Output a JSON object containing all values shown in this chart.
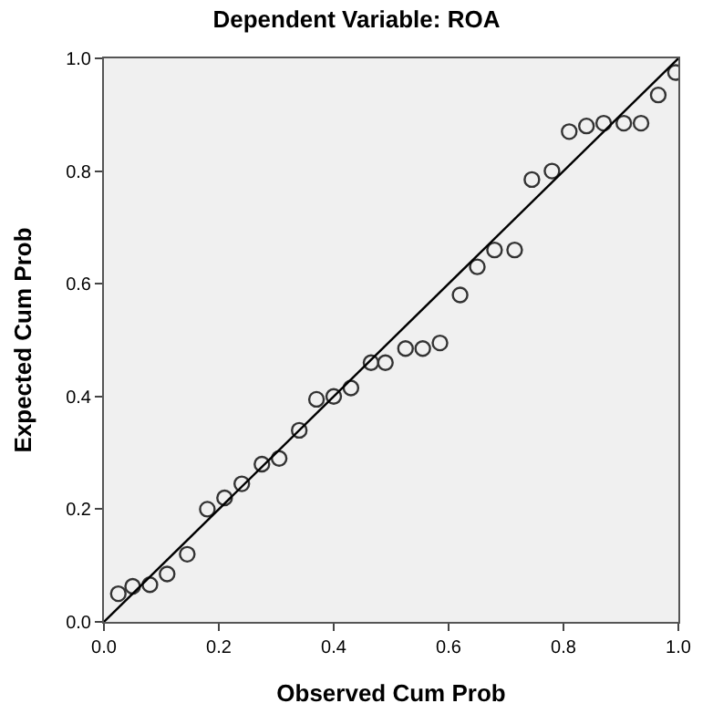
{
  "chart_data": {
    "type": "scatter",
    "title": "Dependent Variable: ROA",
    "xlabel": "Observed Cum Prob",
    "ylabel": "Expected Cum Prob",
    "xlim": [
      0,
      1
    ],
    "ylim": [
      0,
      1
    ],
    "xticks": [
      {
        "value": 0,
        "label": "0.0"
      },
      {
        "value": 0.2,
        "label": "0.2"
      },
      {
        "value": 0.4,
        "label": "0.4"
      },
      {
        "value": 0.6,
        "label": "0.6"
      },
      {
        "value": 0.8,
        "label": "0.8"
      },
      {
        "value": 1,
        "label": "1.0"
      }
    ],
    "yticks": [
      {
        "value": 0,
        "label": "0.0"
      },
      {
        "value": 0.2,
        "label": "0.2"
      },
      {
        "value": 0.4,
        "label": "0.4"
      },
      {
        "value": 0.6,
        "label": "0.6"
      },
      {
        "value": 0.8,
        "label": "0.8"
      },
      {
        "value": 1,
        "label": "1.0"
      }
    ],
    "grid": false,
    "series": [
      {
        "marker": "circle",
        "color": "#333333",
        "x": [
          0.025,
          0.05,
          0.08,
          0.11,
          0.145,
          0.18,
          0.21,
          0.24,
          0.275,
          0.305,
          0.34,
          0.37,
          0.4,
          0.43,
          0.465,
          0.49,
          0.525,
          0.555,
          0.585,
          0.62,
          0.65,
          0.68,
          0.715,
          0.745,
          0.78,
          0.81,
          0.84,
          0.87,
          0.905,
          0.935,
          0.965,
          0.995
        ],
        "values": [
          0.05,
          0.063,
          0.066,
          0.085,
          0.12,
          0.2,
          0.22,
          0.245,
          0.28,
          0.29,
          0.34,
          0.395,
          0.4,
          0.415,
          0.46,
          0.46,
          0.485,
          0.485,
          0.495,
          0.58,
          0.63,
          0.66,
          0.66,
          0.785,
          0.8,
          0.87,
          0.88,
          0.885,
          0.885,
          0.885,
          0.935,
          0.975
        ]
      },
      {
        "type": "line",
        "color": "#000000",
        "x": [
          0,
          1
        ],
        "values": [
          0,
          1
        ]
      }
    ]
  }
}
